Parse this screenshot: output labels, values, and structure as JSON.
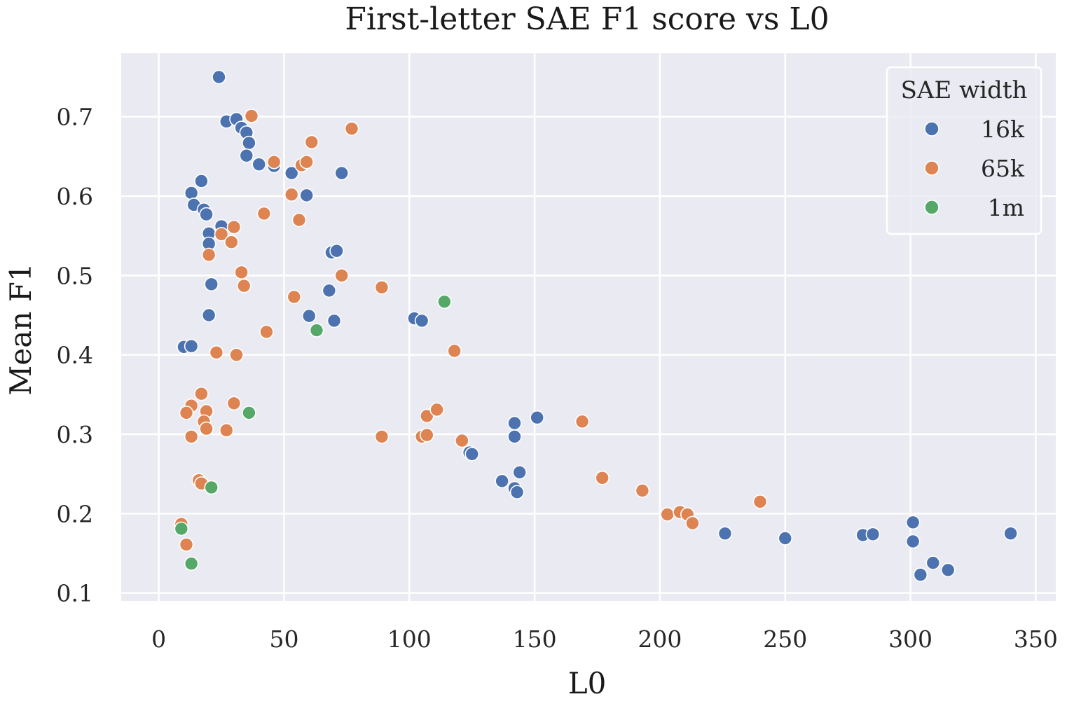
{
  "chart_data": {
    "type": "scatter",
    "title": "First-letter SAE F1 score vs L0",
    "xlabel": "L0",
    "ylabel": "Mean F1",
    "xlim": [
      -15,
      358
    ],
    "ylim": [
      0.09,
      0.78
    ],
    "xticks": [
      0,
      50,
      100,
      150,
      200,
      250,
      300,
      350
    ],
    "yticks": [
      0.1,
      0.2,
      0.3,
      0.4,
      0.5,
      0.6,
      0.7
    ],
    "xtick_labels": [
      "0",
      "50",
      "100",
      "150",
      "200",
      "250",
      "300",
      "350"
    ],
    "ytick_labels": [
      "0.1",
      "0.2",
      "0.3",
      "0.4",
      "0.5",
      "0.6",
      "0.7"
    ],
    "grid": true,
    "legend": {
      "title": "SAE width",
      "position": "top-right"
    },
    "series": [
      {
        "name": "16k",
        "color": "#4c72b0",
        "x": [
          24,
          27,
          31,
          33,
          35,
          36,
          35,
          40,
          46,
          53,
          59,
          73,
          17,
          13,
          14,
          18,
          19,
          20,
          20,
          25,
          21,
          20,
          10,
          13,
          69,
          71,
          68,
          60,
          70,
          102,
          105,
          142,
          142,
          151,
          124,
          125,
          137,
          142,
          143,
          144,
          226,
          250,
          281,
          285,
          301,
          301,
          304,
          309,
          315,
          340
        ],
        "y": [
          0.75,
          0.694,
          0.697,
          0.686,
          0.68,
          0.667,
          0.651,
          0.64,
          0.638,
          0.629,
          0.601,
          0.629,
          0.619,
          0.604,
          0.589,
          0.583,
          0.577,
          0.553,
          0.54,
          0.562,
          0.489,
          0.45,
          0.41,
          0.411,
          0.529,
          0.531,
          0.481,
          0.449,
          0.443,
          0.446,
          0.443,
          0.314,
          0.297,
          0.321,
          0.277,
          0.275,
          0.241,
          0.232,
          0.227,
          0.252,
          0.175,
          0.169,
          0.173,
          0.174,
          0.189,
          0.165,
          0.123,
          0.138,
          0.129,
          0.175
        ]
      },
      {
        "name": "65k",
        "color": "#dd8452",
        "x": [
          37,
          77,
          61,
          46,
          57,
          59,
          53,
          42,
          56,
          30,
          25,
          29,
          20,
          33,
          34,
          73,
          89,
          54,
          43,
          118,
          23,
          31,
          17,
          30,
          13,
          11,
          19,
          18,
          19,
          27,
          13,
          16,
          17,
          9,
          11,
          107,
          111,
          105,
          107,
          89,
          121,
          169,
          177,
          193,
          203,
          208,
          211,
          213,
          240
        ],
        "y": [
          0.701,
          0.685,
          0.668,
          0.643,
          0.639,
          0.643,
          0.602,
          0.578,
          0.57,
          0.561,
          0.552,
          0.542,
          0.526,
          0.504,
          0.487,
          0.5,
          0.485,
          0.473,
          0.429,
          0.405,
          0.403,
          0.4,
          0.351,
          0.339,
          0.336,
          0.327,
          0.329,
          0.316,
          0.307,
          0.305,
          0.297,
          0.242,
          0.238,
          0.187,
          0.161,
          0.323,
          0.331,
          0.297,
          0.299,
          0.297,
          0.292,
          0.316,
          0.245,
          0.229,
          0.199,
          0.202,
          0.199,
          0.188,
          0.215
        ]
      },
      {
        "name": "1m",
        "color": "#55a868",
        "x": [
          114,
          63,
          36,
          21,
          9,
          13
        ],
        "y": [
          0.467,
          0.431,
          0.327,
          0.233,
          0.181,
          0.137
        ]
      }
    ]
  }
}
